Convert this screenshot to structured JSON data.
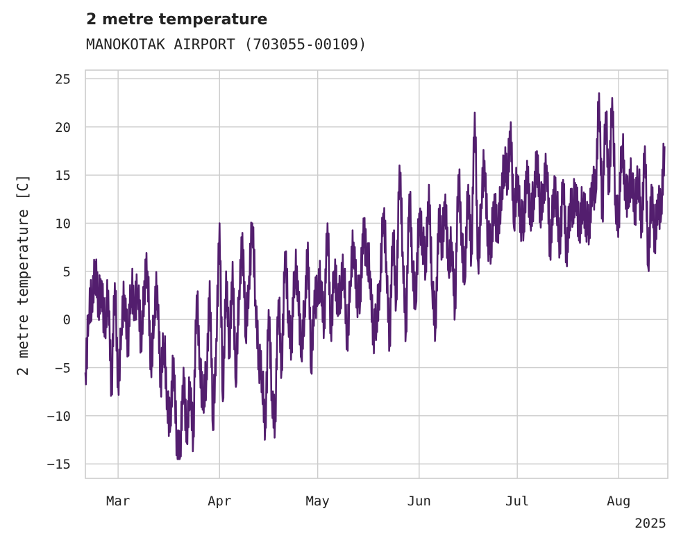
{
  "chart_data": {
    "type": "line",
    "title": "2 metre temperature",
    "subtitle": "MANOKOTAK AIRPORT (703055-00109)",
    "xlabel": "",
    "ylabel": "2 metre temperature [C]",
    "ylim": [
      -16.5,
      25.9
    ],
    "yticks": [
      -15,
      -10,
      -5,
      0,
      5,
      10,
      15,
      20,
      25
    ],
    "ytick_labels": [
      "−15",
      "−10",
      "−5",
      "0",
      "5",
      "10",
      "15",
      "20",
      "25"
    ],
    "xlim": [
      "2025-02-19",
      "2025-08-16"
    ],
    "xticks": [
      {
        "date": "2025-03-01",
        "label": "Mar"
      },
      {
        "date": "2025-04-01",
        "label": "Apr"
      },
      {
        "date": "2025-05-01",
        "label": "May"
      },
      {
        "date": "2025-06-01",
        "label": "Jun"
      },
      {
        "date": "2025-07-01",
        "label": "Jul"
      },
      {
        "date": "2025-08-01",
        "label": "Aug"
      }
    ],
    "x_offset_label": "2025",
    "grid": true,
    "line_color": "#531e6e",
    "series": [
      {
        "x": [
          "2025-02-19",
          "2025-02-20",
          "2025-02-21",
          "2025-02-22",
          "2025-02-23",
          "2025-02-24",
          "2025-02-25",
          "2025-02-26",
          "2025-02-27",
          "2025-02-28",
          "2025-03-01",
          "2025-03-02",
          "2025-03-03",
          "2025-03-04",
          "2025-03-05",
          "2025-03-06",
          "2025-03-07",
          "2025-03-08",
          "2025-03-09",
          "2025-03-10",
          "2025-03-11",
          "2025-03-12",
          "2025-03-13",
          "2025-03-14",
          "2025-03-15",
          "2025-03-16",
          "2025-03-17",
          "2025-03-18",
          "2025-03-19",
          "2025-03-20",
          "2025-03-21",
          "2025-03-22",
          "2025-03-23",
          "2025-03-24",
          "2025-03-25",
          "2025-03-26",
          "2025-03-27",
          "2025-03-28",
          "2025-03-29",
          "2025-03-30",
          "2025-03-31",
          "2025-04-01",
          "2025-04-02",
          "2025-04-03",
          "2025-04-04",
          "2025-04-05",
          "2025-04-06",
          "2025-04-07",
          "2025-04-08",
          "2025-04-09",
          "2025-04-10",
          "2025-04-11",
          "2025-04-12",
          "2025-04-13",
          "2025-04-14",
          "2025-04-15",
          "2025-04-16",
          "2025-04-17",
          "2025-04-18",
          "2025-04-19",
          "2025-04-20",
          "2025-04-21",
          "2025-04-22",
          "2025-04-23",
          "2025-04-24",
          "2025-04-25",
          "2025-04-26",
          "2025-04-27",
          "2025-04-28",
          "2025-04-29",
          "2025-04-30",
          "2025-05-01",
          "2025-05-02",
          "2025-05-03",
          "2025-05-04",
          "2025-05-05",
          "2025-05-06",
          "2025-05-07",
          "2025-05-08",
          "2025-05-09",
          "2025-05-10",
          "2025-05-11",
          "2025-05-12",
          "2025-05-13",
          "2025-05-14",
          "2025-05-15",
          "2025-05-16",
          "2025-05-17",
          "2025-05-18",
          "2025-05-19",
          "2025-05-20",
          "2025-05-21",
          "2025-05-22",
          "2025-05-23",
          "2025-05-24",
          "2025-05-25",
          "2025-05-26",
          "2025-05-27",
          "2025-05-28",
          "2025-05-29",
          "2025-05-30",
          "2025-05-31",
          "2025-06-01",
          "2025-06-02",
          "2025-06-03",
          "2025-06-04",
          "2025-06-05",
          "2025-06-06",
          "2025-06-07",
          "2025-06-08",
          "2025-06-09",
          "2025-06-10",
          "2025-06-11",
          "2025-06-12",
          "2025-06-13",
          "2025-06-14",
          "2025-06-15",
          "2025-06-16",
          "2025-06-17",
          "2025-06-18",
          "2025-06-19",
          "2025-06-20",
          "2025-06-21",
          "2025-06-22",
          "2025-06-23",
          "2025-06-24",
          "2025-06-25",
          "2025-06-26",
          "2025-06-27",
          "2025-06-28",
          "2025-06-29",
          "2025-06-30",
          "2025-07-01",
          "2025-07-02",
          "2025-07-03",
          "2025-07-04",
          "2025-07-05",
          "2025-07-06",
          "2025-07-07",
          "2025-07-08",
          "2025-07-09",
          "2025-07-10",
          "2025-07-11",
          "2025-07-12",
          "2025-07-13",
          "2025-07-14",
          "2025-07-15",
          "2025-07-16",
          "2025-07-17",
          "2025-07-18",
          "2025-07-19",
          "2025-07-20",
          "2025-07-21",
          "2025-07-22",
          "2025-07-23",
          "2025-07-24",
          "2025-07-25",
          "2025-07-26",
          "2025-07-27",
          "2025-07-28",
          "2025-07-29",
          "2025-07-30",
          "2025-07-31",
          "2025-08-01",
          "2025-08-02",
          "2025-08-03",
          "2025-08-04",
          "2025-08-05",
          "2025-08-06",
          "2025-08-07",
          "2025-08-08",
          "2025-08-09",
          "2025-08-10",
          "2025-08-11",
          "2025-08-12",
          "2025-08-13",
          "2025-08-14",
          "2025-08-15"
        ],
        "y": [
          -5.5,
          0.5,
          2.0,
          6.0,
          1.0,
          4.0,
          -1.5,
          3.0,
          -7.0,
          3.8,
          -6.5,
          -1.0,
          2.5,
          -2.0,
          3.0,
          2.0,
          3.2,
          -2.5,
          4.0,
          5.0,
          -4.5,
          0.0,
          3.5,
          -6.0,
          -2.5,
          -8.0,
          -11.0,
          -4.0,
          -13.0,
          -14.2,
          -5.0,
          -12.8,
          -6.5,
          -12.0,
          2.5,
          -4.0,
          -9.0,
          -6.0,
          4.0,
          -11.5,
          -2.0,
          10.0,
          -8.5,
          5.0,
          -4.0,
          6.0,
          -7.0,
          3.0,
          9.0,
          -2.0,
          4.5,
          10.0,
          2.0,
          -3.5,
          -6.5,
          -11.0,
          1.0,
          -8.0,
          -10.0,
          2.0,
          -5.0,
          7.0,
          0.5,
          -2.0,
          5.0,
          4.0,
          -4.0,
          1.0,
          8.0,
          -5.5,
          3.0,
          2.5,
          4.0,
          0.0,
          10.0,
          -1.0,
          5.0,
          2.0,
          3.5,
          5.0,
          -2.0,
          4.0,
          8.0,
          3.0,
          2.0,
          10.5,
          6.0,
          5.0,
          -1.0,
          -0.5,
          4.0,
          11.0,
          6.0,
          -2.0,
          9.0,
          2.0,
          16.0,
          7.0,
          -1.0,
          13.0,
          6.0,
          1.5,
          11.0,
          9.0,
          5.0,
          14.0,
          3.0,
          -1.0,
          11.5,
          7.0,
          13.0,
          5.0,
          8.0,
          1.5,
          15.0,
          9.0,
          4.0,
          14.0,
          7.0,
          21.5,
          6.0,
          12.0,
          16.5,
          9.0,
          7.0,
          13.0,
          8.5,
          12.5,
          17.0,
          14.0,
          20.5,
          9.5,
          15.0,
          11.0,
          9.5,
          16.5,
          10.0,
          12.5,
          17.5,
          10.5,
          14.0,
          16.0,
          7.0,
          13.5,
          12.0,
          8.0,
          14.5,
          6.5,
          12.0,
          11.0,
          14.0,
          8.5,
          12.5,
          11.0,
          9.0,
          15.0,
          13.0,
          23.5,
          11.0,
          21.5,
          14.0,
          23.0,
          12.0,
          11.0,
          18.0,
          14.0,
          12.5,
          15.0,
          12.0,
          14.5,
          10.0,
          18.0,
          5.5,
          14.0,
          7.5,
          13.0,
          11.0,
          18.0
        ]
      }
    ]
  }
}
